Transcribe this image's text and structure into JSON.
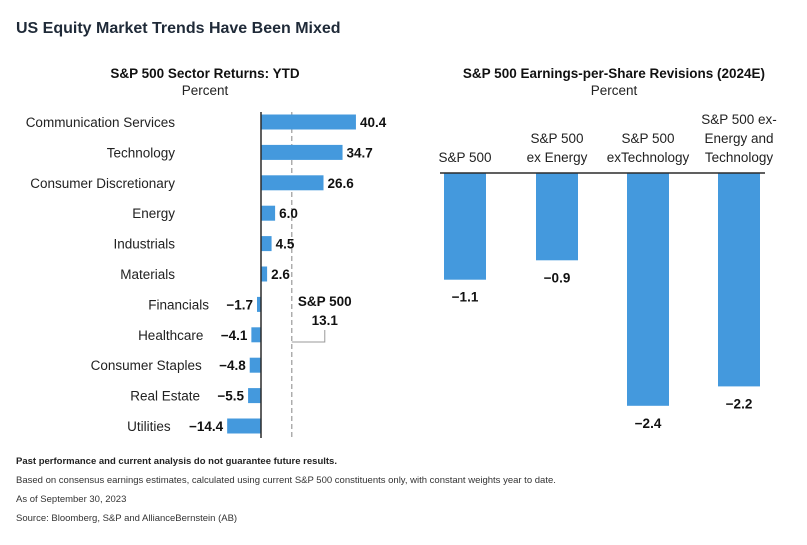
{
  "title": "US Equity Market Trends Have Been Mixed",
  "colors": {
    "bar": "#4499dd",
    "axis": "#2b2b2b",
    "reference": "#9a9a9a"
  },
  "chart_data": [
    {
      "type": "bar",
      "orientation": "horizontal",
      "title": "S&P 500 Sector Returns: YTD",
      "subtitle": "Percent",
      "categories": [
        "Communication Services",
        "Technology",
        "Consumer Discretionary",
        "Energy",
        "Industrials",
        "Materials",
        "Financials",
        "Healthcare",
        "Consumer Staples",
        "Real Estate",
        "Utilities"
      ],
      "values": [
        40.4,
        34.7,
        26.6,
        6.0,
        4.5,
        2.6,
        -1.7,
        -4.1,
        -4.8,
        -5.5,
        -14.4
      ],
      "value_labels": [
        "40.4",
        "34.7",
        "26.6",
        "6.0",
        "4.5",
        "2.6",
        "−1.7",
        "−4.1",
        "−4.8",
        "−5.5",
        "−14.4"
      ],
      "reference_line": {
        "label_line1": "S&P 500",
        "label_line2": "13.1",
        "value": 13.1
      }
    },
    {
      "type": "bar",
      "orientation": "vertical",
      "title": "S&P 500 Earnings-per-Share Revisions (2024E)",
      "subtitle": "Percent",
      "categories": [
        [
          "S&P 500"
        ],
        [
          "S&P 500",
          "ex Energy"
        ],
        [
          "S&P 500",
          "exTechnology"
        ],
        [
          "S&P 500 ex-",
          "Energy and",
          "Technology"
        ]
      ],
      "values": [
        -1.1,
        -0.9,
        -2.4,
        -2.2
      ],
      "value_labels": [
        "−1.1",
        "−0.9",
        "−2.4",
        "−2.2"
      ]
    }
  ],
  "notes": {
    "disclaimer": "Past performance and current analysis do not guarantee future results.",
    "methodology": "Based on consensus earnings estimates, calculated using current S&P 500 constituents only, with constant weights year to date.",
    "as_of": "As of September 30, 2023",
    "source": "Source: Bloomberg, S&P and AllianceBernstein (AB)"
  }
}
